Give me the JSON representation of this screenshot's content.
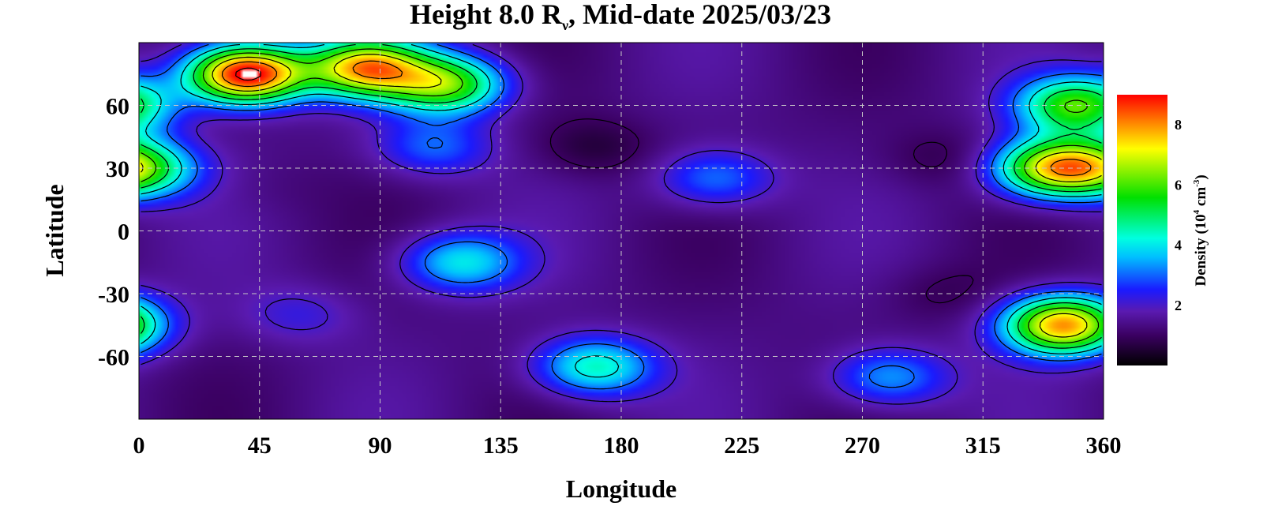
{
  "chart_data": {
    "type": "heatmap",
    "title": {
      "prefix": "Height 8.0 R",
      "subscript": "ν",
      "suffix": ", Mid-date 2025/03/23"
    },
    "xlabel": "Longitude",
    "ylabel": "Latitude",
    "xlim": [
      0,
      360
    ],
    "ylim": [
      -90,
      90
    ],
    "x_ticks": [
      0,
      45,
      90,
      135,
      180,
      225,
      270,
      315,
      360
    ],
    "y_ticks": [
      60,
      30,
      0,
      -30,
      -60
    ],
    "grid": true,
    "colorbar": {
      "label": "Density (10",
      "label_sup1": "4",
      "label_mid": " cm",
      "label_sup2": "-3",
      "label_end": ")",
      "range": [
        0,
        9
      ],
      "ticks": [
        2,
        4,
        6,
        8
      ],
      "colors": [
        "#000000",
        "#3a0060",
        "#5a1ab0",
        "#1a1aff",
        "#00bfff",
        "#00ffe0",
        "#00e000",
        "#ffff00",
        "#ff8000",
        "#ff0000"
      ]
    },
    "features": [
      {
        "lon": 40,
        "lat": 75,
        "value": 9.5,
        "note": "saturated (white) region"
      },
      {
        "lon": 85,
        "lat": 78,
        "value": 7.5
      },
      {
        "lon": 115,
        "lat": 70,
        "value": 6.0
      },
      {
        "lon": 110,
        "lat": 40,
        "value": 3.0
      },
      {
        "lon": 170,
        "lat": 40,
        "value": 0.6
      },
      {
        "lon": 300,
        "lat": 35,
        "value": 0.8
      },
      {
        "lon": 120,
        "lat": -15,
        "value": 4.0
      },
      {
        "lon": 215,
        "lat": 25,
        "value": 3.2
      },
      {
        "lon": 0,
        "lat": 30,
        "value": 5.0
      },
      {
        "lon": 345,
        "lat": -45,
        "value": 8.0
      },
      {
        "lon": 350,
        "lat": 60,
        "value": 6.0
      },
      {
        "lon": 340,
        "lat": 30,
        "value": 6.5
      },
      {
        "lon": 280,
        "lat": -70,
        "value": 3.5
      },
      {
        "lon": 170,
        "lat": -65,
        "value": 4.5
      },
      {
        "lon": 60,
        "lat": -40,
        "value": 2.2
      },
      {
        "lon": 300,
        "lat": -30,
        "value": 0.9
      },
      {
        "lon": 50,
        "lat": 20,
        "value": 1.2
      }
    ]
  }
}
